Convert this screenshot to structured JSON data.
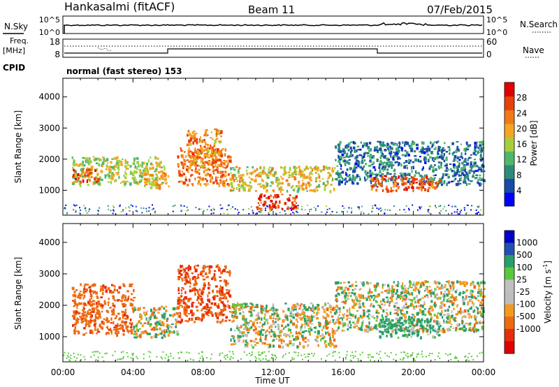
{
  "header": {
    "station": "Hankasalmi (fitACF)",
    "beam": "Beam 11",
    "date": "07/Feb/2015"
  },
  "panels": {
    "nsky": {
      "label": "N.Sky",
      "ticks": [
        "10^5",
        "10^0"
      ]
    },
    "nsearch": {
      "label": "N.Search",
      "ticks": [
        "10^5",
        "10^0"
      ]
    },
    "freq": {
      "label_top": "Freq.",
      "label_unit": "[MHz]",
      "ticks": [
        "18",
        "8"
      ]
    },
    "nave": {
      "label": "Nave",
      "ticks": [
        "60",
        "0"
      ]
    },
    "cpid": {
      "label": "CPID",
      "text": "normal (fast stereo) 153"
    }
  },
  "colors": {
    "power": [
      "#0000ff",
      "#1a4aa8",
      "#2e8b7a",
      "#4fb86b",
      "#a7cf3c",
      "#f5a623",
      "#f07b16",
      "#e8400d",
      "#e00000"
    ],
    "velocity": [
      "#0000c8",
      "#2250b0",
      "#2a9e6a",
      "#5ac83c",
      "#c0c0c0",
      "#bdbdbd",
      "#f29a1e",
      "#ee6a10",
      "#e62e0a",
      "#e00000"
    ]
  },
  "chart_data": [
    {
      "type": "heatmap",
      "name": "power",
      "xlabel": "",
      "ylabel": "Slant Range [km]",
      "xlim": [
        "00:00",
        "24:00"
      ],
      "ylim": [
        200,
        4600
      ],
      "yticks": [
        "1000",
        "2000",
        "3000",
        "4000"
      ],
      "colorbar": {
        "label": "Power [dB]",
        "ticks": [
          "4",
          "8",
          "12",
          "16",
          "20",
          "24",
          "28"
        ]
      },
      "regions": [
        {
          "x": [
            0.5,
            5.8
          ],
          "y": [
            1200,
            2100
          ],
          "value": 18
        },
        {
          "x": [
            0.5,
            2.0
          ],
          "y": [
            1300,
            1700
          ],
          "value": 28
        },
        {
          "x": [
            4.5,
            6.0
          ],
          "y": [
            1100,
            1600
          ],
          "value": 22
        },
        {
          "x": [
            6.5,
            9.5
          ],
          "y": [
            1200,
            2400
          ],
          "value": 26
        },
        {
          "x": [
            7.0,
            9.0
          ],
          "y": [
            1800,
            3000
          ],
          "value": 24
        },
        {
          "x": [
            9.5,
            15.5
          ],
          "y": [
            1000,
            1800
          ],
          "value": 20
        },
        {
          "x": [
            11.0,
            13.3
          ],
          "y": [
            400,
            900
          ],
          "value": 30
        },
        {
          "x": [
            15.5,
            24.0
          ],
          "y": [
            1200,
            2600
          ],
          "value": 10
        },
        {
          "x": [
            17.5,
            21.5
          ],
          "y": [
            1000,
            1500
          ],
          "value": 28
        }
      ]
    },
    {
      "type": "heatmap",
      "name": "velocity",
      "xlabel": "Time UT",
      "ylabel": "Slant Range [km]",
      "xlim": [
        "00:00",
        "24:00"
      ],
      "ylim": [
        200,
        4600
      ],
      "xticks": [
        "00:00",
        "04:00",
        "08:00",
        "12:00",
        "16:00",
        "20:00",
        "00:00"
      ],
      "yticks": [
        "1000",
        "2000",
        "3000",
        "4000"
      ],
      "colorbar": {
        "label": "Velocity [m s^-1]",
        "ticks": [
          "1000",
          "500",
          "100",
          "25",
          "-25",
          "-100",
          "-500",
          "-1000"
        ]
      },
      "regions": [
        {
          "x": [
            0.5,
            4.0
          ],
          "y": [
            1100,
            2700
          ],
          "value": -400
        },
        {
          "x": [
            4.0,
            6.5
          ],
          "y": [
            1000,
            2000
          ],
          "value": 0
        },
        {
          "x": [
            6.5,
            9.5
          ],
          "y": [
            1500,
            3300
          ],
          "value": -500
        },
        {
          "x": [
            9.5,
            15.5
          ],
          "y": [
            700,
            2100
          ],
          "value": 0
        },
        {
          "x": [
            15.5,
            24.0
          ],
          "y": [
            1200,
            2800
          ],
          "value": 10
        },
        {
          "x": [
            18.0,
            21.5
          ],
          "y": [
            1000,
            1600
          ],
          "value": 150
        }
      ]
    }
  ]
}
